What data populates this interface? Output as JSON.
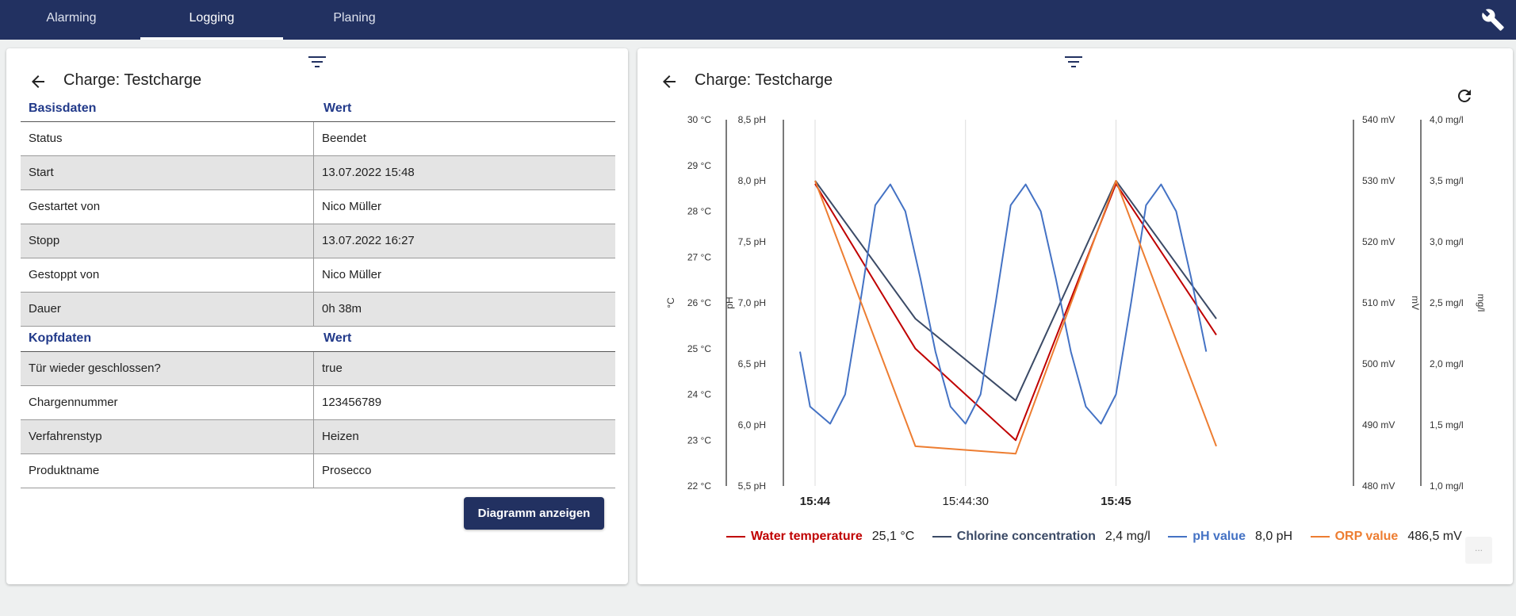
{
  "nav": {
    "tabs": [
      {
        "label": "Alarming",
        "active": false
      },
      {
        "label": "Logging",
        "active": true
      },
      {
        "label": "Planing",
        "active": false
      }
    ],
    "settings_icon": "wrench-icon",
    "bar_color": "#223161"
  },
  "detail": {
    "title": "Charge: Testcharge",
    "section1": {
      "key_header": "Basisdaten",
      "value_header": "Wert",
      "rows": [
        {
          "key": "Status",
          "value": "Beendet"
        },
        {
          "key": "Start",
          "value": "13.07.2022 15:48"
        },
        {
          "key": "Gestartet von",
          "value": "Nico Müller"
        },
        {
          "key": "Stopp",
          "value": "13.07.2022 16:27"
        },
        {
          "key": "Gestoppt von",
          "value": "Nico Müller"
        },
        {
          "key": "Dauer",
          "value": "0h 38m"
        }
      ]
    },
    "section2": {
      "key_header": "Kopfdaten",
      "value_header": "Wert",
      "rows": [
        {
          "key": "Tür wieder geschlossen?",
          "value": "true"
        },
        {
          "key": "Chargennummer",
          "value": "123456789"
        },
        {
          "key": "Verfahrenstyp",
          "value": "Heizen"
        },
        {
          "key": "Produktname",
          "value": "Prosecco"
        }
      ]
    },
    "show_chart_button": "Diagramm anzeigen"
  },
  "chart_panel": {
    "title": "Charge: Testcharge",
    "menu_label": "..."
  },
  "chart_data": {
    "type": "line",
    "x_ticks": [
      {
        "label": "15:44",
        "bold": true,
        "t": 0
      },
      {
        "label": "15:44:30",
        "bold": false,
        "t": 30
      },
      {
        "label": "15:45",
        "bold": true,
        "t": 60
      }
    ],
    "x_range_seconds": [
      -3,
      80
    ],
    "axes": [
      {
        "id": "temp",
        "title": "°C",
        "ticks": [
          "22 °C",
          "23 °C",
          "24 °C",
          "25 °C",
          "26 °C",
          "27 °C",
          "28 °C",
          "29 °C",
          "30 °C"
        ],
        "min": 22,
        "max": 30
      },
      {
        "id": "ph",
        "title": "pH",
        "ticks": [
          "5,5 pH",
          "6,0 pH",
          "6,5 pH",
          "7,0 pH",
          "7,5 pH",
          "8,0 pH",
          "8,5 pH"
        ],
        "min": 5.5,
        "max": 8.5
      },
      {
        "id": "orp",
        "title": "mV",
        "ticks": [
          "480 mV",
          "490 mV",
          "500 mV",
          "510 mV",
          "520 mV",
          "530 mV",
          "540 mV"
        ],
        "min": 480,
        "max": 540
      },
      {
        "id": "chlorine",
        "title": "mg/l",
        "ticks": [
          "1,0 mg/l",
          "1,5 mg/l",
          "2,0 mg/l",
          "2,5 mg/l",
          "3,0 mg/l",
          "3,5 mg/l",
          "4,0 mg/l"
        ],
        "min": 1.0,
        "max": 4.0
      }
    ],
    "series": [
      {
        "name": "Water temperature",
        "axis": "temp",
        "color": "#c00000",
        "legend_value": "25,1 °C",
        "points": [
          [
            0,
            28.6
          ],
          [
            20,
            25.0
          ],
          [
            40,
            23.0
          ],
          [
            60,
            28.6
          ],
          [
            80,
            25.3
          ]
        ]
      },
      {
        "name": "Chlorine concentration",
        "axis": "chlorine",
        "color": "#3b4a66",
        "legend_value": "2,4 mg/l",
        "points": [
          [
            0,
            3.5
          ],
          [
            20,
            2.37
          ],
          [
            40,
            1.7
          ],
          [
            60,
            3.5
          ],
          [
            80,
            2.37
          ]
        ]
      },
      {
        "name": "pH value",
        "axis": "ph",
        "color": "#4472c4",
        "legend_value": "8,0 pH",
        "points": [
          [
            -3,
            6.6
          ],
          [
            -1,
            6.15
          ],
          [
            3,
            6.01
          ],
          [
            6,
            6.25
          ],
          [
            9,
            7.0
          ],
          [
            12,
            7.8
          ],
          [
            15,
            7.97
          ],
          [
            18,
            7.75
          ],
          [
            21,
            7.2
          ],
          [
            24,
            6.6
          ],
          [
            27,
            6.15
          ],
          [
            30,
            6.01
          ],
          [
            33,
            6.25
          ],
          [
            36,
            7.0
          ],
          [
            39,
            7.8
          ],
          [
            42,
            7.97
          ],
          [
            45,
            7.75
          ],
          [
            48,
            7.2
          ],
          [
            51,
            6.6
          ],
          [
            54,
            6.15
          ],
          [
            57,
            6.01
          ],
          [
            60,
            6.25
          ],
          [
            63,
            7.0
          ],
          [
            66,
            7.8
          ],
          [
            69,
            7.97
          ],
          [
            72,
            7.75
          ],
          [
            75,
            7.2
          ],
          [
            78,
            6.6
          ]
        ]
      },
      {
        "name": "ORP value",
        "axis": "orp",
        "color": "#ed7d31",
        "legend_value": "486,5 mV",
        "points": [
          [
            0,
            530
          ],
          [
            20,
            486.5
          ],
          [
            40,
            485.3
          ],
          [
            60,
            530
          ],
          [
            80,
            486.5
          ]
        ]
      }
    ]
  }
}
